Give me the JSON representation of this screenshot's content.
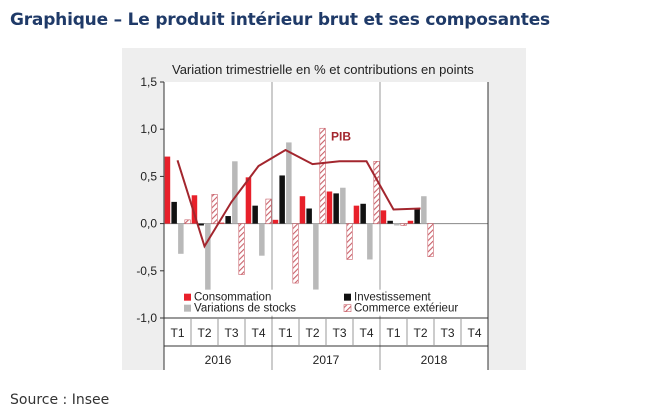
{
  "page": {
    "title": "Graphique – Le produit intérieur brut et ses composantes",
    "source": "Source : Insee"
  },
  "chart_data": {
    "type": "bar",
    "title": "Variation trimestrielle en % et contributions en points",
    "xlabel": "",
    "ylabel": "",
    "ylim": [
      -1.0,
      1.5
    ],
    "yticks": [
      "1,5",
      "1,0",
      "0,5",
      "0,0",
      "-0,5",
      "-1,0"
    ],
    "ytick_values": [
      1.5,
      1.0,
      0.5,
      0.0,
      -0.5,
      -1.0
    ],
    "categories": [
      "T1",
      "T2",
      "T3",
      "T4",
      "T1",
      "T2",
      "T3",
      "T4",
      "T1",
      "T2",
      "T3",
      "T4"
    ],
    "years": [
      "2016",
      "2017",
      "2018"
    ],
    "colors": {
      "consommation": "#e8202a",
      "investissement": "#111111",
      "variations": "#b9b9b9",
      "commerce": "#c9616a",
      "pib": "#a3262e"
    },
    "series": [
      {
        "name": "Consommation",
        "key": "consommation",
        "values": [
          0.71,
          0.3,
          0.01,
          0.49,
          0.04,
          0.29,
          0.34,
          0.19,
          0.14,
          0.03,
          null,
          null
        ]
      },
      {
        "name": "Investissement",
        "key": "investissement",
        "values": [
          0.23,
          -0.02,
          0.08,
          0.19,
          0.51,
          0.16,
          0.32,
          0.21,
          0.03,
          0.16,
          null,
          null
        ]
      },
      {
        "name": "Variations de stocks",
        "key": "variations",
        "values": [
          -0.32,
          -0.75,
          0.66,
          -0.34,
          0.86,
          -0.7,
          0.38,
          -0.38,
          -0.02,
          0.29,
          null,
          null
        ]
      },
      {
        "name": "Commerce extérieur",
        "key": "commerce",
        "values": [
          0.04,
          0.31,
          -0.54,
          0.26,
          -0.63,
          1.01,
          -0.38,
          0.66,
          -0.02,
          -0.35,
          null,
          null
        ]
      }
    ],
    "line": {
      "name": "PIB",
      "label": "PIB",
      "values": [
        0.67,
        -0.24,
        0.23,
        0.61,
        0.78,
        0.63,
        0.66,
        0.66,
        0.15,
        0.16,
        null,
        null
      ]
    },
    "legend": [
      "Consommation",
      "Investissement",
      "Variations de stocks",
      "Commerce extérieur"
    ]
  }
}
